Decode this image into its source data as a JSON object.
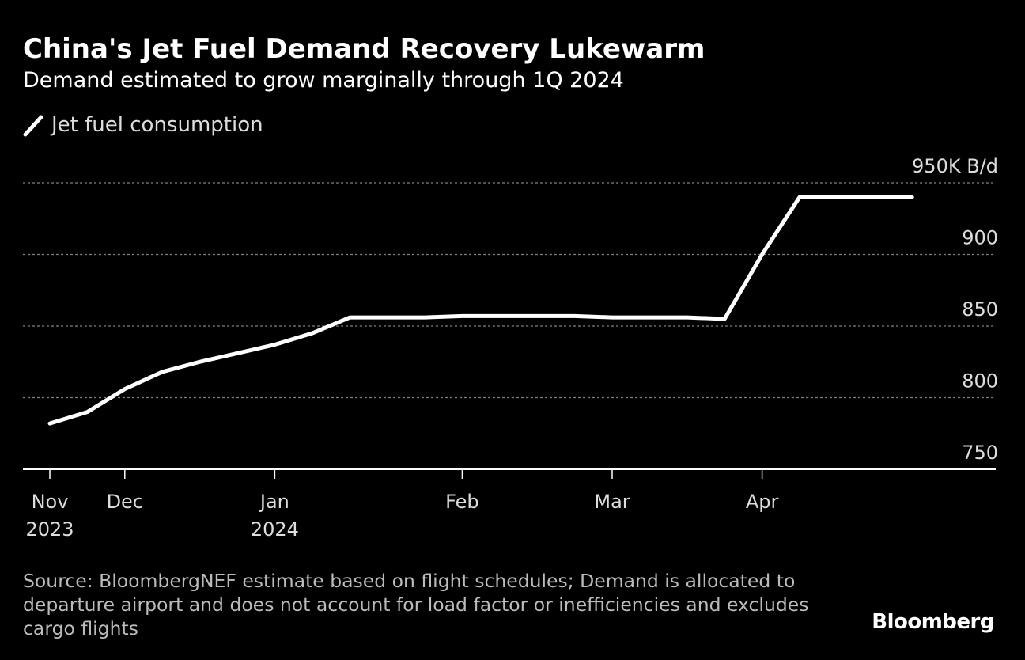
{
  "header": {
    "title": "China's Jet Fuel Demand Recovery Lukewarm",
    "subtitle": "Demand estimated to grow marginally through 1Q 2024"
  },
  "legend": {
    "label": "Jet fuel consumption"
  },
  "footer": {
    "source": "Source: BloombergNEF estimate based on flight schedules; Demand is allocated to departure airport and does not account for load factor or inefficiencies and excludes cargo flights",
    "brand": "Bloomberg"
  },
  "colors": {
    "background": "#000000",
    "line": "#ffffff",
    "gridline": "#808080",
    "axis": "#ffffff",
    "tick_label": "#dddddd"
  },
  "chart_data": {
    "type": "line",
    "title": "China's Jet Fuel Demand Recovery Lukewarm",
    "subtitle": "Demand estimated to grow marginally through 1Q 2024",
    "xlabel": "",
    "ylabel": "",
    "y_unit_label": "950K B/d",
    "ylim": [
      750,
      950
    ],
    "y_ticks": [
      750,
      800,
      850,
      900,
      950
    ],
    "y_tick_labels": [
      "750",
      "800",
      "850",
      "900",
      "950K B/d"
    ],
    "x_ticks": [
      {
        "week": 0,
        "label": [
          "Nov",
          "2023"
        ]
      },
      {
        "week": 2,
        "label": [
          "Dec"
        ]
      },
      {
        "week": 6,
        "label": [
          "Jan",
          "2024"
        ]
      },
      {
        "week": 11,
        "label": [
          "Feb"
        ]
      },
      {
        "week": 15,
        "label": [
          "Mar"
        ]
      },
      {
        "week": 19,
        "label": [
          "Apr"
        ]
      }
    ],
    "x_range_weeks": [
      -0.75,
      25.25
    ],
    "grid": true,
    "legend_position": "top-left",
    "series": [
      {
        "name": "Jet fuel consumption",
        "x_week": [
          0,
          1,
          2,
          3,
          4,
          5,
          6,
          7,
          8,
          9,
          10,
          11,
          12,
          13,
          14,
          15,
          16,
          17,
          18,
          19,
          20,
          21,
          22,
          23
        ],
        "values": [
          782,
          790,
          806,
          818,
          825,
          831,
          837,
          845,
          856,
          856,
          856,
          857,
          857,
          857,
          857,
          856,
          856,
          856,
          855,
          900,
          940,
          940,
          940,
          940
        ]
      }
    ]
  }
}
